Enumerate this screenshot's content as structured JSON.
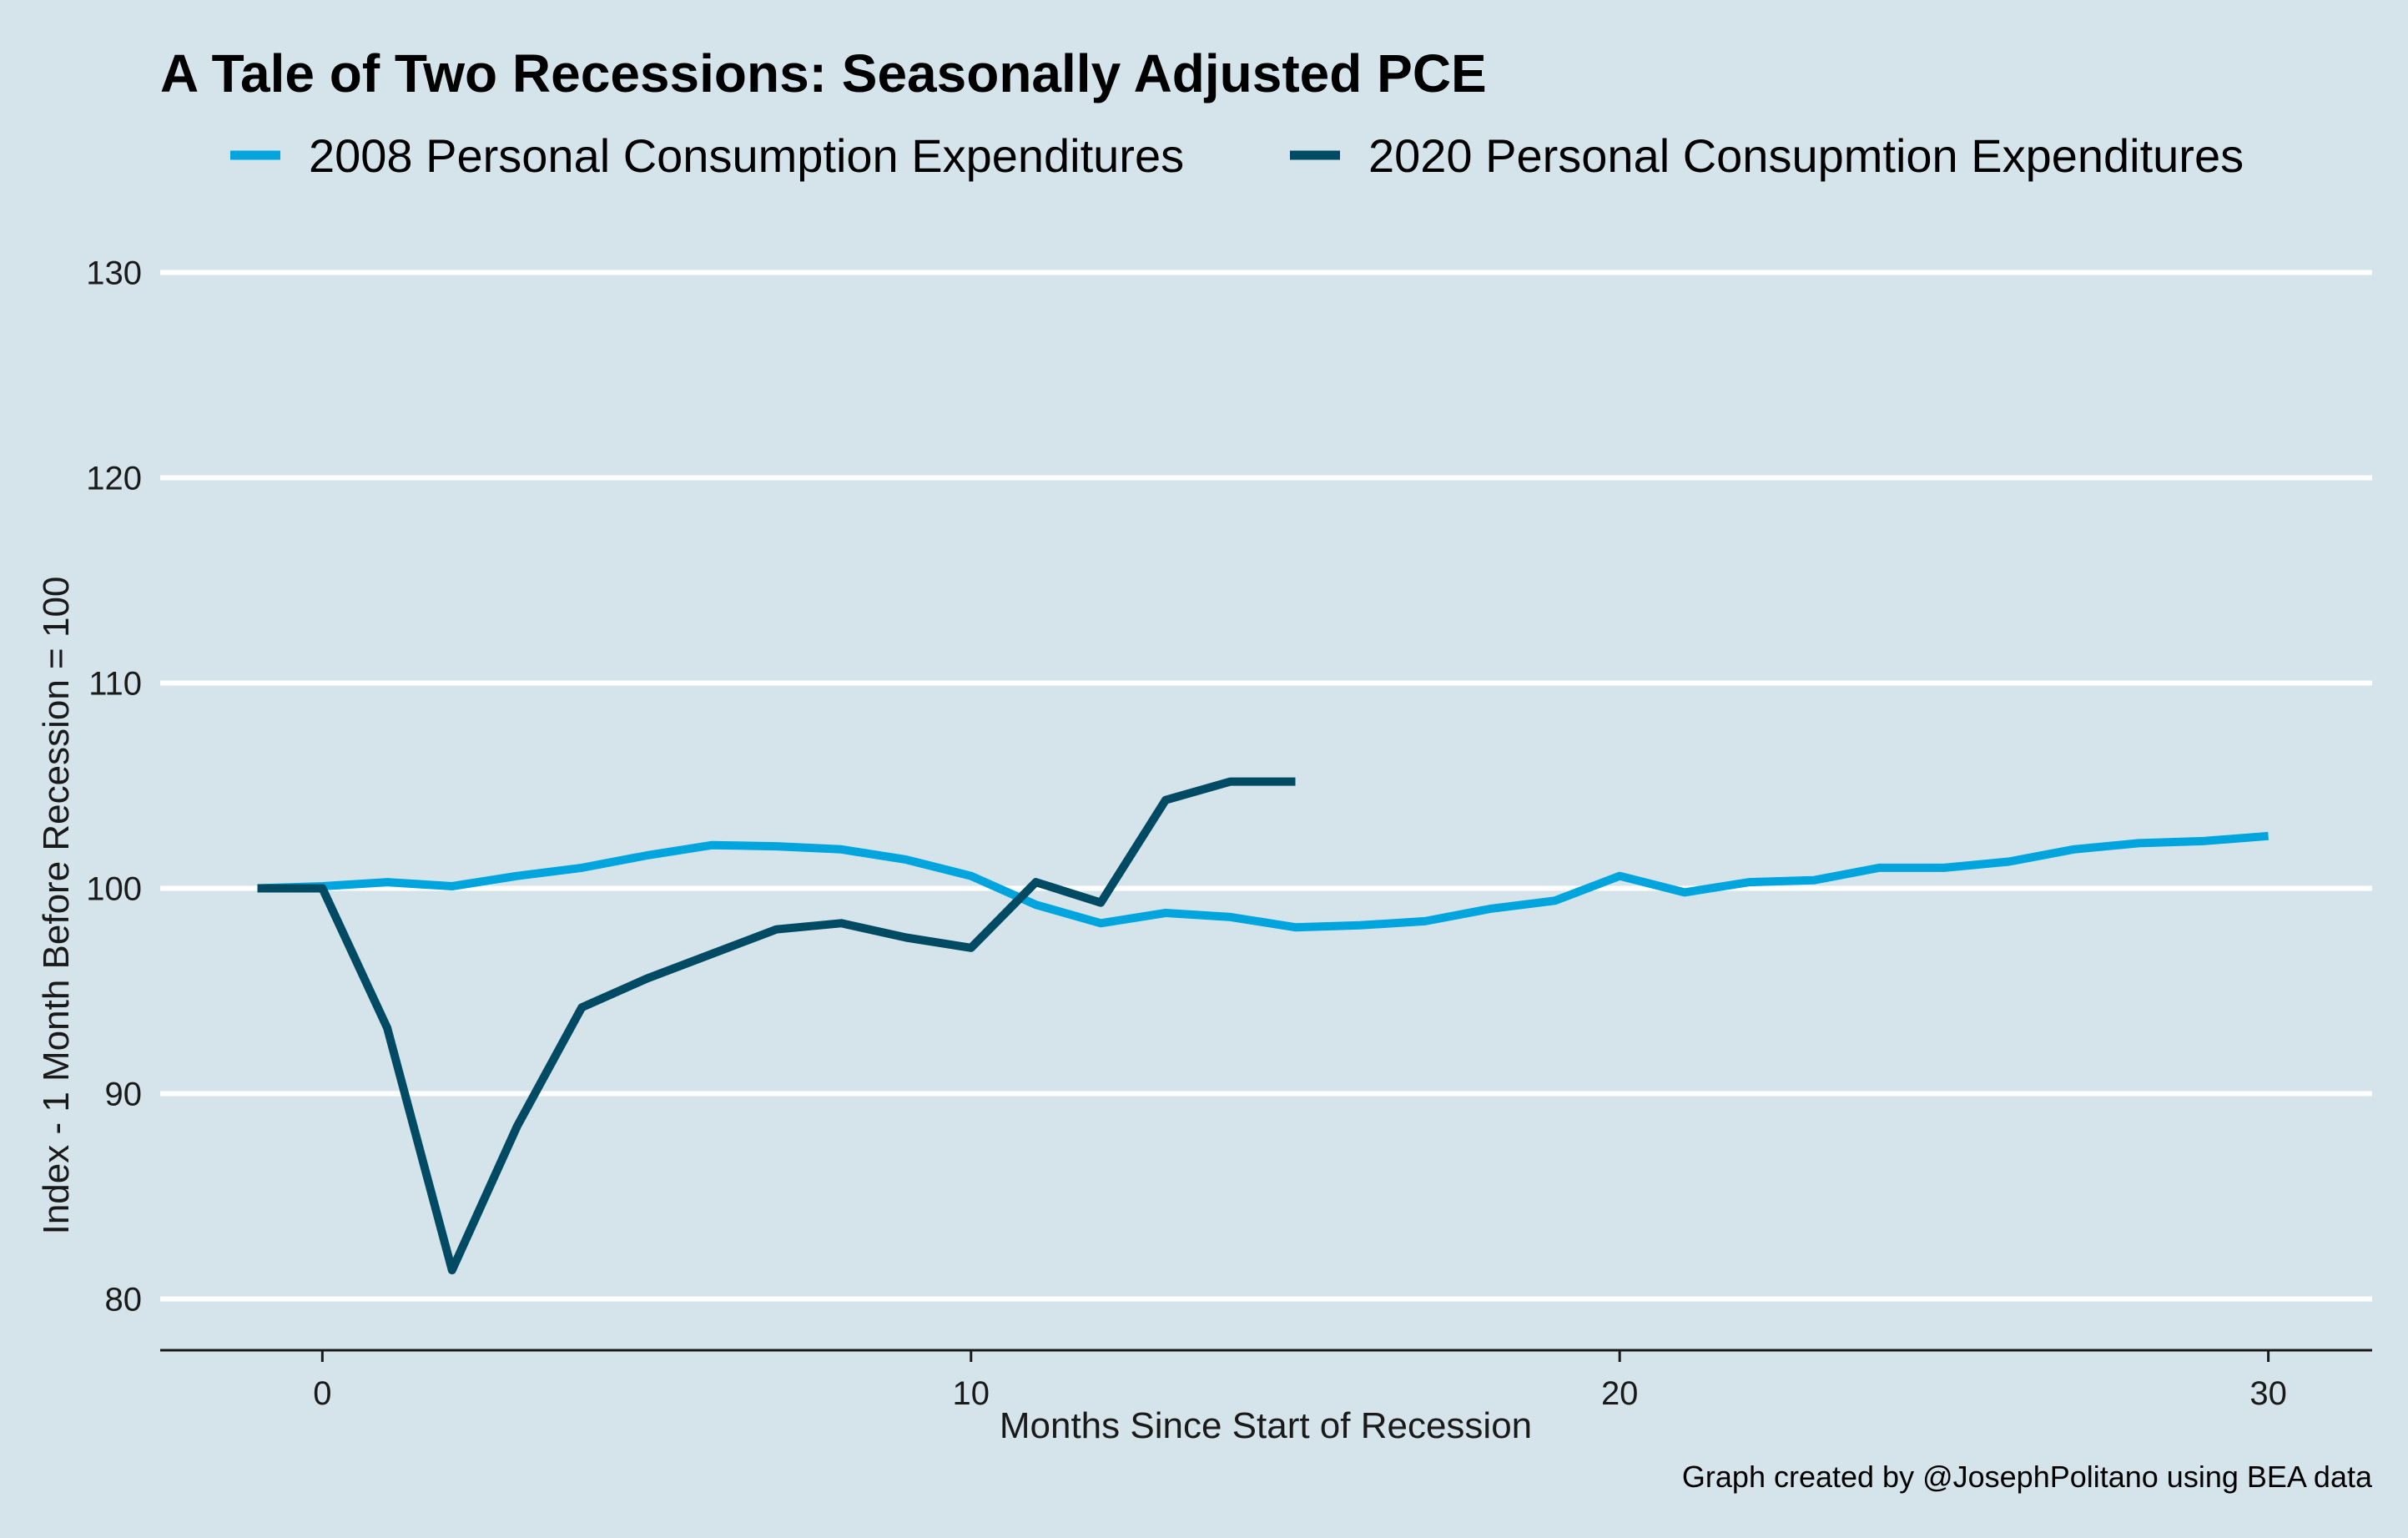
{
  "chart_data": {
    "type": "line",
    "title": "A Tale of Two Recessions: Seasonally Adjusted PCE",
    "xlabel": "Months Since Start of Recession",
    "ylabel": "Index - 1 Month Before Recession = 100",
    "caption": "Graph created by @JosephPolitano using BEA data",
    "xlim": [
      -2.5,
      31.6
    ],
    "ylim": [
      77.5,
      132.5
    ],
    "xticks": [
      0,
      10,
      20,
      30
    ],
    "xtick_labels": [
      "0",
      "10",
      "20",
      "30"
    ],
    "yticks": [
      80,
      90,
      100,
      110,
      120,
      130
    ],
    "ytick_labels": [
      "80",
      "90",
      "100",
      "110",
      "120",
      "130"
    ],
    "grid": "horizontal",
    "legend_position": "top",
    "series": [
      {
        "name": "2008 Personal Consumption Expenditures",
        "color": "#00a5dd",
        "x": [
          -1,
          0,
          1,
          2,
          3,
          4,
          5,
          6,
          7,
          8,
          9,
          10,
          11,
          12,
          13,
          14,
          15,
          16,
          17,
          18,
          19,
          20,
          21,
          22,
          23,
          24,
          25,
          26,
          27,
          28,
          29,
          30
        ],
        "values": [
          100.0,
          100.1,
          100.3,
          100.1,
          100.6,
          101.0,
          101.6,
          102.1,
          102.05,
          101.9,
          101.4,
          100.6,
          99.2,
          98.3,
          98.8,
          98.6,
          98.1,
          98.2,
          98.4,
          99.0,
          99.4,
          100.6,
          99.8,
          100.3,
          100.4,
          101.0,
          101.0,
          101.3,
          101.9,
          102.2,
          102.3,
          102.55
        ]
      },
      {
        "name": "2020 Personal Consupmtion Expenditures",
        "color": "#004a63",
        "x": [
          -1,
          0,
          1,
          2,
          3,
          4,
          5,
          6,
          7,
          8,
          9,
          10,
          11,
          12,
          13,
          14,
          15
        ],
        "values": [
          100.0,
          100.0,
          93.2,
          81.4,
          88.4,
          94.2,
          95.6,
          96.8,
          98.0,
          98.3,
          97.6,
          97.1,
          100.3,
          99.3,
          104.3,
          105.2,
          105.2
        ]
      }
    ]
  }
}
